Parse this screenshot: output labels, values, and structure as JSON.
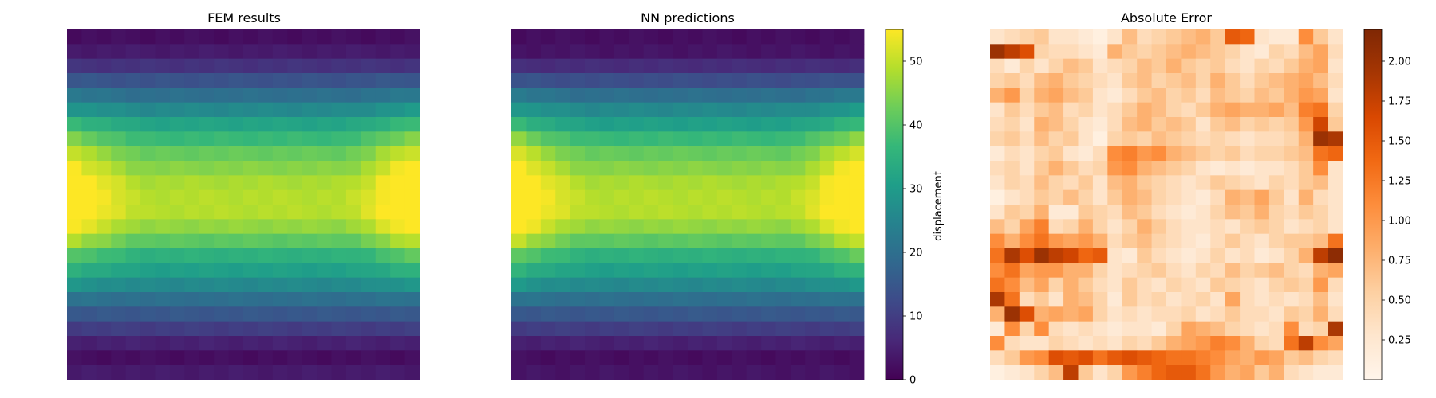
{
  "chart_data": [
    {
      "type": "heatmap",
      "title": "FEM results",
      "colormap": "viridis",
      "vmin": 0,
      "vmax": 55,
      "grid_rows": 24,
      "grid_cols": 24,
      "profile": {
        "row_values": [
          2,
          4,
          8,
          14,
          20,
          26,
          32,
          37,
          42,
          45,
          48,
          49,
          49,
          46,
          41,
          35,
          31,
          26,
          20,
          15,
          10,
          5,
          2,
          4
        ],
        "column_edge_boost": [
          10,
          7,
          5,
          3,
          1,
          0,
          0,
          0,
          0,
          0,
          0,
          0,
          0,
          0,
          0,
          0,
          0,
          0,
          0,
          1,
          3,
          6,
          9,
          11
        ],
        "row_weight_for_edge_boost": [
          0,
          0,
          0,
          0.1,
          0.2,
          0.3,
          0.5,
          0.7,
          0.85,
          0.95,
          1,
          1,
          1,
          0.9,
          0.75,
          0.55,
          0.4,
          0.25,
          0.1,
          0,
          0,
          0,
          0,
          0
        ]
      },
      "grid": false,
      "axes_visible": false
    },
    {
      "type": "heatmap",
      "title": "NN predictions",
      "colormap": "viridis",
      "vmin": 0,
      "vmax": 55,
      "grid_rows": 24,
      "grid_cols": 24,
      "profile": {
        "row_values": [
          2,
          3,
          7,
          13,
          20,
          26,
          31,
          37,
          42,
          45,
          48,
          49,
          49,
          46,
          41,
          35,
          31,
          26,
          20,
          15,
          10,
          5,
          2,
          3
        ],
        "column_edge_boost": [
          12,
          8,
          5,
          3,
          1,
          0,
          0,
          0,
          0,
          0,
          0,
          0,
          0,
          0,
          0,
          0,
          0,
          0,
          0,
          1,
          3,
          6,
          9,
          12
        ],
        "row_weight_for_edge_boost": [
          0,
          0,
          0,
          0.1,
          0.2,
          0.3,
          0.5,
          0.7,
          0.85,
          0.95,
          1,
          1,
          1,
          0.9,
          0.75,
          0.55,
          0.4,
          0.25,
          0.1,
          0,
          0,
          0,
          0,
          0
        ]
      },
      "colorbar": {
        "label": "displacement",
        "ticks": [
          0,
          10,
          20,
          30,
          40,
          50
        ],
        "range": [
          0,
          55
        ]
      },
      "grid": false,
      "axes_visible": false
    },
    {
      "type": "heatmap",
      "title": "Absolute Error",
      "colormap": "oranges",
      "vmin": 0,
      "vmax": 2.2,
      "grid_rows": 24,
      "grid_cols": 24,
      "values": [
        [
          0.3,
          0.4,
          0.5,
          0.6,
          0.3,
          0.3,
          0.2,
          0.1,
          0.3,
          0.7,
          0.4,
          0.5,
          0.6,
          0.7,
          0.8,
          0.6,
          1.5,
          1.4,
          0.3,
          0.2,
          0.2,
          1.1,
          0.6,
          0.3
        ],
        [
          2.0,
          1.8,
          1.6,
          0.5,
          0.4,
          0.4,
          0.3,
          0.2,
          0.8,
          0.6,
          0.5,
          0.6,
          0.7,
          0.8,
          0.7,
          0.6,
          0.5,
          0.3,
          0.2,
          0.5,
          0.4,
          0.7,
          0.9,
          0.4
        ],
        [
          0.4,
          0.2,
          0.5,
          0.3,
          0.5,
          0.7,
          0.6,
          0.3,
          0.4,
          0.5,
          0.7,
          0.6,
          0.8,
          0.6,
          0.5,
          0.6,
          0.4,
          0.3,
          0.5,
          0.4,
          0.6,
          0.8,
          0.9,
          0.3
        ],
        [
          0.5,
          0.6,
          0.4,
          0.7,
          0.8,
          0.6,
          0.5,
          0.4,
          0.3,
          0.6,
          0.7,
          0.5,
          0.6,
          0.7,
          0.5,
          0.8,
          0.6,
          0.4,
          0.6,
          0.7,
          0.8,
          0.9,
          0.7,
          0.4
        ],
        [
          0.8,
          1.0,
          0.5,
          0.8,
          0.9,
          0.7,
          0.6,
          0.3,
          0.2,
          0.4,
          0.6,
          0.7,
          0.5,
          0.6,
          0.4,
          0.7,
          0.6,
          0.5,
          0.7,
          0.6,
          0.8,
          1.0,
          0.9,
          0.3
        ],
        [
          0.3,
          0.6,
          0.4,
          0.6,
          0.7,
          0.4,
          0.5,
          0.3,
          0.4,
          0.6,
          0.8,
          0.7,
          0.5,
          0.4,
          0.6,
          0.8,
          0.9,
          0.8,
          0.8,
          0.9,
          0.7,
          1.2,
          1.3,
          0.5
        ],
        [
          0.4,
          0.5,
          0.3,
          0.8,
          0.7,
          0.5,
          0.3,
          0.2,
          0.4,
          0.7,
          0.8,
          0.6,
          0.7,
          0.6,
          0.3,
          0.6,
          0.7,
          0.5,
          0.6,
          0.5,
          0.6,
          1.0,
          1.7,
          0.6
        ],
        [
          0.5,
          0.6,
          0.4,
          0.7,
          0.5,
          0.6,
          0.3,
          0.1,
          0.5,
          0.6,
          0.5,
          0.7,
          0.6,
          0.5,
          0.4,
          0.5,
          0.4,
          0.3,
          0.4,
          0.4,
          0.5,
          0.8,
          2.0,
          1.9
        ],
        [
          0.2,
          0.4,
          0.3,
          0.5,
          0.6,
          0.3,
          0.2,
          0.4,
          1.1,
          1.2,
          1.0,
          1.1,
          0.8,
          0.7,
          0.6,
          0.5,
          0.6,
          0.4,
          0.5,
          0.5,
          0.6,
          0.7,
          1.3,
          1.4
        ],
        [
          0.4,
          0.5,
          0.3,
          0.6,
          0.8,
          0.6,
          0.4,
          0.5,
          1.0,
          1.1,
          0.8,
          0.7,
          0.6,
          0.5,
          0.3,
          0.2,
          0.3,
          0.2,
          0.3,
          0.3,
          0.4,
          0.6,
          1.1,
          0.3
        ],
        [
          0.3,
          0.5,
          0.4,
          0.7,
          0.5,
          0.4,
          0.6,
          0.3,
          0.7,
          0.8,
          0.6,
          0.5,
          0.4,
          0.3,
          0.4,
          0.6,
          0.5,
          0.4,
          0.3,
          0.5,
          0.4,
          0.6,
          0.7,
          0.3
        ],
        [
          0.1,
          0.3,
          0.4,
          0.6,
          0.5,
          0.7,
          0.5,
          0.3,
          0.6,
          0.8,
          0.7,
          0.5,
          0.4,
          0.3,
          0.2,
          0.4,
          0.8,
          0.7,
          0.9,
          0.6,
          0.3,
          0.8,
          0.4,
          0.3
        ],
        [
          0.3,
          0.6,
          0.5,
          0.8,
          0.2,
          0.2,
          0.6,
          0.5,
          0.4,
          0.7,
          0.6,
          0.4,
          0.3,
          0.2,
          0.3,
          0.5,
          0.7,
          0.6,
          0.8,
          0.5,
          0.4,
          0.6,
          0.5,
          0.3
        ],
        [
          0.7,
          0.5,
          0.9,
          1.2,
          0.4,
          0.5,
          0.8,
          0.5,
          0.3,
          0.5,
          0.8,
          0.6,
          0.4,
          0.3,
          0.3,
          0.4,
          0.3,
          0.5,
          0.6,
          0.5,
          0.3,
          0.4,
          0.5,
          0.3
        ],
        [
          1.1,
          0.8,
          1.1,
          1.3,
          1.0,
          0.9,
          1.0,
          0.8,
          0.4,
          0.6,
          0.7,
          0.5,
          0.4,
          0.3,
          0.2,
          0.4,
          0.6,
          0.4,
          0.3,
          0.5,
          0.6,
          0.6,
          0.7,
          1.3
        ],
        [
          1.3,
          1.9,
          1.6,
          2.0,
          1.8,
          1.7,
          1.4,
          1.5,
          0.3,
          0.2,
          0.6,
          0.4,
          0.3,
          0.2,
          0.3,
          0.5,
          0.3,
          0.4,
          0.2,
          0.3,
          0.5,
          0.8,
          1.8,
          2.1
        ],
        [
          1.1,
          1.3,
          0.9,
          1.0,
          1.0,
          0.8,
          0.8,
          0.5,
          0.3,
          0.4,
          0.5,
          0.6,
          0.4,
          0.3,
          0.5,
          0.4,
          0.7,
          0.5,
          0.6,
          0.7,
          0.5,
          0.4,
          0.8,
          0.9
        ],
        [
          1.3,
          1.1,
          0.7,
          0.9,
          0.5,
          0.8,
          0.6,
          0.4,
          0.3,
          0.6,
          0.4,
          0.3,
          0.5,
          0.4,
          0.3,
          0.6,
          0.5,
          0.4,
          0.3,
          0.5,
          0.6,
          0.5,
          1.0,
          0.4
        ],
        [
          1.9,
          1.3,
          0.4,
          0.6,
          0.3,
          0.8,
          0.7,
          0.5,
          0.2,
          0.6,
          0.4,
          0.5,
          0.3,
          0.4,
          0.5,
          0.3,
          0.9,
          0.4,
          0.3,
          0.4,
          0.3,
          0.4,
          0.7,
          0.3
        ],
        [
          0.8,
          2.0,
          1.6,
          0.8,
          0.9,
          0.8,
          0.9,
          0.5,
          0.3,
          0.4,
          0.3,
          0.4,
          0.4,
          0.5,
          0.3,
          0.4,
          0.6,
          0.4,
          0.4,
          0.3,
          0.6,
          0.5,
          0.8,
          0.4
        ],
        [
          0.2,
          1.1,
          0.5,
          1.1,
          0.4,
          0.3,
          0.4,
          0.3,
          0.2,
          0.3,
          0.3,
          0.2,
          0.5,
          0.9,
          0.8,
          0.7,
          0.5,
          0.4,
          0.3,
          0.4,
          1.1,
          0.4,
          0.5,
          1.9
        ],
        [
          1.1,
          0.4,
          0.3,
          0.3,
          0.5,
          0.4,
          0.3,
          0.4,
          0.3,
          0.5,
          0.4,
          0.6,
          0.8,
          0.9,
          1.0,
          1.2,
          1.1,
          0.8,
          0.5,
          0.4,
          1.3,
          1.8,
          1.1,
          0.9
        ],
        [
          0.4,
          0.6,
          1.0,
          1.1,
          1.6,
          1.5,
          1.6,
          1.3,
          1.5,
          1.6,
          1.5,
          1.4,
          1.3,
          1.3,
          1.2,
          1.1,
          0.9,
          0.8,
          1.0,
          0.9,
          0.6,
          0.7,
          0.5,
          0.4
        ],
        [
          0.1,
          0.2,
          0.3,
          0.5,
          0.7,
          1.8,
          0.6,
          0.3,
          0.5,
          1.0,
          1.2,
          1.4,
          1.5,
          1.5,
          1.3,
          1.0,
          0.8,
          0.9,
          0.6,
          0.8,
          0.4,
          0.3,
          0.2,
          0.2
        ]
      ],
      "colorbar": {
        "label": "",
        "ticks": [
          0.25,
          0.5,
          0.75,
          1.0,
          1.25,
          1.5,
          1.75,
          2.0
        ],
        "tick_labels": [
          "0.25",
          "0.50",
          "0.75",
          "1.00",
          "1.25",
          "1.50",
          "1.75",
          "2.00"
        ],
        "range": [
          0,
          2.2
        ]
      },
      "grid": false,
      "axes_visible": false
    }
  ]
}
